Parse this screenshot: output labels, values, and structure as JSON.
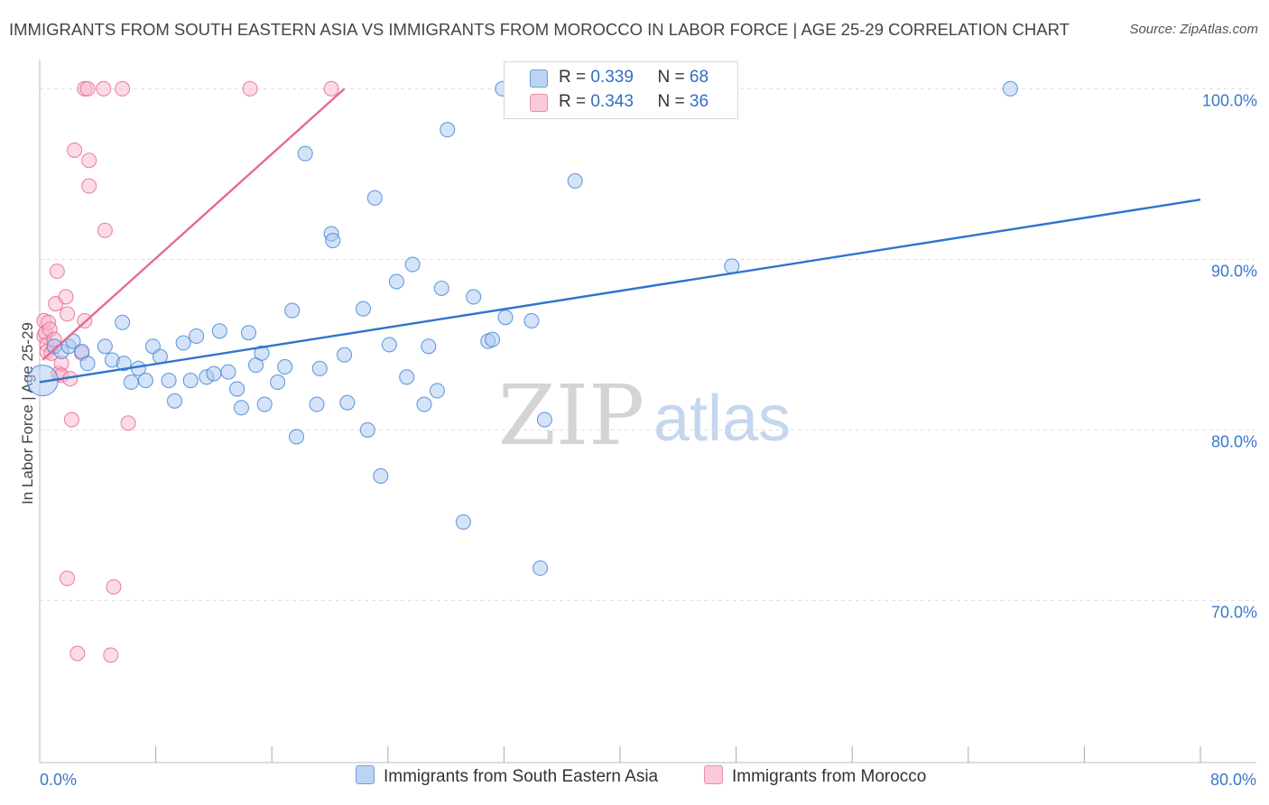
{
  "title": "IMMIGRANTS FROM SOUTH EASTERN ASIA VS IMMIGRANTS FROM MOROCCO IN LABOR FORCE | AGE 25-29 CORRELATION CHART",
  "source": "Source: ZipAtlas.com",
  "watermark": {
    "part1": "ZIP",
    "part2": "atlas"
  },
  "legend": {
    "blue": {
      "r_label": "R =",
      "r_value": "0.339",
      "n_label": "N =",
      "n_value": "68"
    },
    "pink": {
      "r_label": "R =",
      "r_value": "0.343",
      "n_label": "N =",
      "n_value": "36"
    }
  },
  "colors": {
    "blue": "#3a7fd5",
    "blue_fill": "#a9c8f0",
    "pink": "#e8608a",
    "pink_fill": "#f7b8cc",
    "grid": "#dddddd",
    "axis_text": "#3a78c9"
  },
  "chart_data": {
    "type": "scatter",
    "title": "IMMIGRANTS FROM SOUTH EASTERN ASIA VS IMMIGRANTS FROM MOROCCO IN LABOR FORCE | AGE 25-29 CORRELATION CHART",
    "xlabel": "",
    "ylabel": "In Labor Force | Age 25-29",
    "xlim": [
      0,
      80
    ],
    "ylim": [
      60.5,
      101.5
    ],
    "x_tick_labels": [
      "0.0%",
      "80.0%"
    ],
    "y_ticks": [
      70,
      80,
      90,
      100
    ],
    "y_tick_labels": [
      "70.0%",
      "80.0%",
      "90.0%",
      "100.0%"
    ],
    "series": [
      {
        "name": "Immigrants from South Eastern Asia",
        "color": "blue",
        "trend": {
          "x": [
            0,
            80
          ],
          "y": [
            82.8,
            93.5
          ]
        },
        "points": [
          [
            0.2,
            82.9
          ],
          [
            1.0,
            84.9
          ],
          [
            1.5,
            84.6
          ],
          [
            2.0,
            84.9
          ],
          [
            2.3,
            85.2
          ],
          [
            2.9,
            84.6
          ],
          [
            3.3,
            83.9
          ],
          [
            4.5,
            84.9
          ],
          [
            5.0,
            84.1
          ],
          [
            5.7,
            86.3
          ],
          [
            5.8,
            83.9
          ],
          [
            6.3,
            82.8
          ],
          [
            6.8,
            83.6
          ],
          [
            7.3,
            82.9
          ],
          [
            7.8,
            84.9
          ],
          [
            8.3,
            84.3
          ],
          [
            8.9,
            82.9
          ],
          [
            9.3,
            81.7
          ],
          [
            9.9,
            85.1
          ],
          [
            10.4,
            82.9
          ],
          [
            10.8,
            85.5
          ],
          [
            11.5,
            83.1
          ],
          [
            12.0,
            83.3
          ],
          [
            12.4,
            85.8
          ],
          [
            13.0,
            83.4
          ],
          [
            13.6,
            82.4
          ],
          [
            13.9,
            81.3
          ],
          [
            14.4,
            85.7
          ],
          [
            14.9,
            83.8
          ],
          [
            15.3,
            84.5
          ],
          [
            15.5,
            81.5
          ],
          [
            16.4,
            82.8
          ],
          [
            16.9,
            83.7
          ],
          [
            17.4,
            87.0
          ],
          [
            17.7,
            79.6
          ],
          [
            18.3,
            96.2
          ],
          [
            19.1,
            81.5
          ],
          [
            19.3,
            83.6
          ],
          [
            20.1,
            91.5
          ],
          [
            20.2,
            91.1
          ],
          [
            21.0,
            84.4
          ],
          [
            21.2,
            81.6
          ],
          [
            22.3,
            87.1
          ],
          [
            22.6,
            80.0
          ],
          [
            23.1,
            93.6
          ],
          [
            23.5,
            77.3
          ],
          [
            24.1,
            85.0
          ],
          [
            24.6,
            88.7
          ],
          [
            25.3,
            83.1
          ],
          [
            25.7,
            89.7
          ],
          [
            26.5,
            81.5
          ],
          [
            26.8,
            84.9
          ],
          [
            27.4,
            82.3
          ],
          [
            27.7,
            88.3
          ],
          [
            28.1,
            97.6
          ],
          [
            29.2,
            74.6
          ],
          [
            29.9,
            87.8
          ],
          [
            30.9,
            85.2
          ],
          [
            31.2,
            85.3
          ],
          [
            31.9,
            100.0
          ],
          [
            32.1,
            86.6
          ],
          [
            33.9,
            86.4
          ],
          [
            34.5,
            71.9
          ],
          [
            34.8,
            80.6
          ],
          [
            36.9,
            94.6
          ],
          [
            47.7,
            89.6
          ],
          [
            66.9,
            100.0
          ]
        ]
      },
      {
        "name": "Immigrants from Morocco",
        "color": "pink",
        "trend": {
          "x": [
            0.2,
            21.0
          ],
          "y": [
            84.1,
            100.0
          ]
        },
        "points": [
          [
            0.3,
            86.4
          ],
          [
            0.3,
            85.5
          ],
          [
            0.4,
            85.7
          ],
          [
            0.5,
            85.0
          ],
          [
            0.5,
            84.6
          ],
          [
            0.6,
            86.3
          ],
          [
            0.7,
            85.9
          ],
          [
            0.8,
            84.5
          ],
          [
            1.0,
            85.3
          ],
          [
            1.1,
            87.4
          ],
          [
            1.2,
            89.3
          ],
          [
            1.3,
            83.3
          ],
          [
            1.5,
            83.9
          ],
          [
            1.5,
            83.2
          ],
          [
            1.8,
            87.8
          ],
          [
            1.9,
            86.8
          ],
          [
            1.9,
            71.3
          ],
          [
            2.1,
            83.0
          ],
          [
            2.2,
            80.6
          ],
          [
            2.4,
            96.4
          ],
          [
            2.6,
            66.9
          ],
          [
            2.9,
            84.5
          ],
          [
            3.1,
            86.4
          ],
          [
            3.1,
            100.0
          ],
          [
            3.3,
            100.0
          ],
          [
            3.4,
            95.8
          ],
          [
            3.4,
            94.3
          ],
          [
            4.4,
            100.0
          ],
          [
            4.5,
            91.7
          ],
          [
            4.9,
            66.8
          ],
          [
            5.1,
            70.8
          ],
          [
            5.7,
            100.0
          ],
          [
            6.1,
            80.4
          ],
          [
            14.5,
            100.0
          ],
          [
            20.1,
            100.0
          ]
        ]
      }
    ]
  },
  "bottom_legend": {
    "blue_label": "Immigrants from South Eastern Asia",
    "pink_label": "Immigrants from Morocco"
  }
}
